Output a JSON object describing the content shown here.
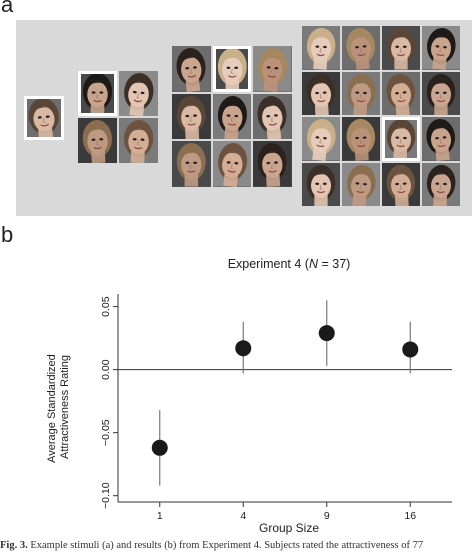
{
  "panel_a": {
    "letter": "a"
  },
  "panel_b": {
    "letter": "b"
  },
  "groups": [
    {
      "size": 1,
      "highlight": 0
    },
    {
      "size": 4,
      "highlight": 0
    },
    {
      "size": 9,
      "highlight": 1
    },
    {
      "size": 16,
      "highlight": 10
    }
  ],
  "chart_data": {
    "type": "scatter",
    "title_prefix": "Experiment 4 (",
    "title_italic": "N",
    "title_suffix": " = 37)",
    "xlabel": "Group Size",
    "ylabel_lines": [
      "Average Standardized",
      "Attractiveness Rating"
    ],
    "categories": [
      "1",
      "4",
      "9",
      "16"
    ],
    "values": [
      -0.062,
      0.017,
      0.029,
      0.016
    ],
    "error_low": [
      -0.092,
      -0.003,
      0.003,
      -0.003
    ],
    "error_high": [
      -0.032,
      0.038,
      0.055,
      0.038
    ],
    "yticks": [
      -0.1,
      -0.05,
      0.0,
      0.05
    ],
    "ytick_labels": [
      "−0.10",
      "−0.05",
      "0.00",
      "0.05"
    ],
    "ylim": [
      -0.105,
      0.06
    ],
    "reference_line": 0,
    "grid": false
  },
  "caption": {
    "lead": "Fig. 3.",
    "text": "Example stimuli (a) and results (b) from Experiment 4. Subjects rated the attractiveness of 77"
  }
}
